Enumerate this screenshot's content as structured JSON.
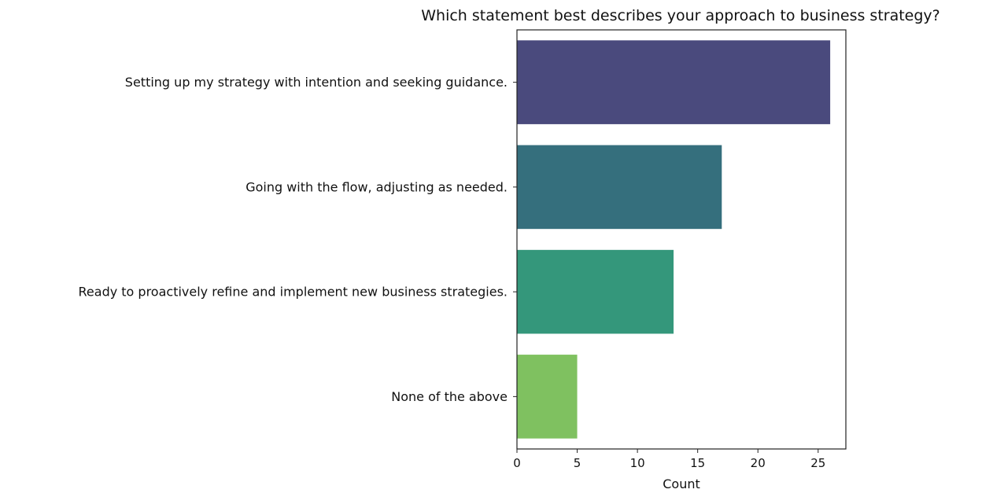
{
  "chart_data": {
    "type": "bar",
    "orientation": "horizontal",
    "title": "Which statement best describes your approach to business strategy?",
    "xlabel": "Count",
    "ylabel": "",
    "categories": [
      "Setting up my strategy with intention and seeking guidance.",
      "Going with the flow, adjusting as needed.",
      "Ready to proactively refine and implement new business strategies.",
      "None of the above"
    ],
    "values": [
      26,
      17,
      13,
      5
    ],
    "colors": [
      "#4a4a7d",
      "#356f7d",
      "#34977b",
      "#7fc160"
    ],
    "xlim": [
      0,
      27.3
    ],
    "xticks": [
      0,
      5,
      10,
      15,
      20,
      25
    ],
    "grid": false,
    "legend": "none"
  }
}
